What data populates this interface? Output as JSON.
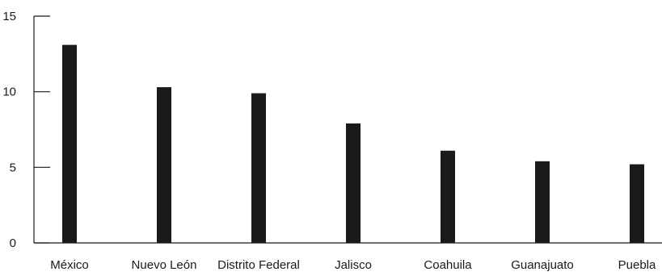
{
  "chart_data": {
    "type": "bar",
    "categories": [
      "México",
      "Nuevo León",
      "Distrito Federal",
      "Jalisco",
      "Coahuila",
      "Guanajuato",
      "Puebla"
    ],
    "values": [
      13.1,
      10.3,
      9.9,
      7.9,
      6.1,
      5.4,
      5.2
    ],
    "title": "",
    "xlabel": "",
    "ylabel": "",
    "ylim": [
      0,
      15
    ],
    "yticks": [
      0,
      5,
      10,
      15
    ],
    "grid": false,
    "bar_color": "#1a1a1a",
    "axis_color": "#1a1a1a"
  }
}
